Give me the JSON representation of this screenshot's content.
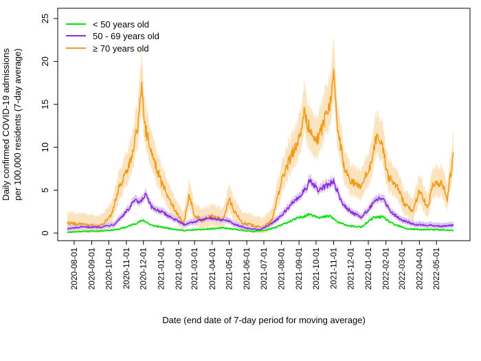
{
  "chart_data": {
    "type": "line",
    "title": "",
    "xlabel": "Date (end date of 7-day period for moving average)",
    "ylabel": [
      "Daily confirmed COVID-19 admissions",
      "per 100,000 residents (7-day average)"
    ],
    "ylim": [
      0,
      25
    ],
    "yticks": [
      0,
      5,
      10,
      15,
      20,
      25
    ],
    "x_start": "2020-07-20",
    "x_end": "2022-05-31",
    "xticks": [
      "2020-08-01",
      "2020-09-01",
      "2020-10-01",
      "2020-11-01",
      "2020-12-01",
      "2021-01-01",
      "2021-02-01",
      "2021-03-01",
      "2021-04-01",
      "2021-05-01",
      "2021-06-01",
      "2021-07-01",
      "2021-08-01",
      "2021-09-01",
      "2021-10-01",
      "2021-11-01",
      "2021-12-01",
      "2022-01-01",
      "2022-02-01",
      "2022-03-01",
      "2022-04-01",
      "2022-05-01"
    ],
    "legend": {
      "position": "top-left"
    },
    "series": [
      {
        "name": "< 50 years old",
        "color": "#00e000",
        "band_color": "#b8f0b8",
        "band_width": 0.25,
        "points": [
          [
            "2020-07-20",
            0.1
          ],
          [
            "2020-08-15",
            0.2
          ],
          [
            "2020-09-15",
            0.25
          ],
          [
            "2020-10-15",
            0.4
          ],
          [
            "2020-11-01",
            0.7
          ],
          [
            "2020-11-20",
            1.2
          ],
          [
            "2020-12-01",
            1.5
          ],
          [
            "2020-12-15",
            0.9
          ],
          [
            "2021-01-01",
            0.7
          ],
          [
            "2021-01-20",
            0.5
          ],
          [
            "2021-02-10",
            0.3
          ],
          [
            "2021-03-10",
            0.4
          ],
          [
            "2021-04-01",
            0.5
          ],
          [
            "2021-04-20",
            0.6
          ],
          [
            "2021-05-15",
            0.4
          ],
          [
            "2021-06-10",
            0.2
          ],
          [
            "2021-07-01",
            0.3
          ],
          [
            "2021-07-20",
            0.6
          ],
          [
            "2021-08-10",
            1.2
          ],
          [
            "2021-09-01",
            1.8
          ],
          [
            "2021-09-20",
            2.2
          ],
          [
            "2021-10-10",
            1.8
          ],
          [
            "2021-10-25",
            2.0
          ],
          [
            "2021-11-10",
            1.2
          ],
          [
            "2021-12-01",
            0.8
          ],
          [
            "2021-12-20",
            0.7
          ],
          [
            "2022-01-10",
            1.8
          ],
          [
            "2022-01-25",
            1.9
          ],
          [
            "2022-02-15",
            1.0
          ],
          [
            "2022-03-10",
            0.5
          ],
          [
            "2022-04-05",
            0.4
          ],
          [
            "2022-05-01",
            0.4
          ],
          [
            "2022-05-31",
            0.3
          ]
        ]
      },
      {
        "name": "50 - 69 years old",
        "color": "#8a2be2",
        "band_color": "#dcc6ec",
        "band_width": 0.7,
        "points": [
          [
            "2020-07-20",
            0.5
          ],
          [
            "2020-08-15",
            0.7
          ],
          [
            "2020-09-15",
            0.7
          ],
          [
            "2020-10-10",
            1.0
          ],
          [
            "2020-10-25",
            2.0
          ],
          [
            "2020-11-05",
            2.8
          ],
          [
            "2020-11-15",
            3.8
          ],
          [
            "2020-11-25",
            3.5
          ],
          [
            "2020-12-05",
            4.5
          ],
          [
            "2020-12-15",
            3.0
          ],
          [
            "2021-01-01",
            2.5
          ],
          [
            "2021-01-20",
            1.8
          ],
          [
            "2021-02-10",
            1.0
          ],
          [
            "2021-03-10",
            1.5
          ],
          [
            "2021-03-25",
            1.8
          ],
          [
            "2021-04-10",
            1.6
          ],
          [
            "2021-04-25",
            1.5
          ],
          [
            "2021-05-15",
            0.9
          ],
          [
            "2021-06-05",
            0.5
          ],
          [
            "2021-06-25",
            0.4
          ],
          [
            "2021-07-10",
            0.9
          ],
          [
            "2021-08-01",
            2.0
          ],
          [
            "2021-08-20",
            3.5
          ],
          [
            "2021-09-05",
            4.5
          ],
          [
            "2021-09-20",
            6.0
          ],
          [
            "2021-10-05",
            5.0
          ],
          [
            "2021-10-20",
            5.5
          ],
          [
            "2021-11-01",
            6.0
          ],
          [
            "2021-11-15",
            3.5
          ],
          [
            "2021-12-01",
            2.5
          ],
          [
            "2021-12-20",
            1.8
          ],
          [
            "2022-01-10",
            3.5
          ],
          [
            "2022-01-25",
            4.2
          ],
          [
            "2022-02-10",
            2.5
          ],
          [
            "2022-03-01",
            1.5
          ],
          [
            "2022-03-25",
            1.0
          ],
          [
            "2022-04-20",
            0.9
          ],
          [
            "2022-05-10",
            0.8
          ],
          [
            "2022-05-31",
            0.9
          ]
        ]
      },
      {
        "name": "≥ 70 years old",
        "color": "#f09a1a",
        "band_color": "#fbe3be",
        "band_width": 2.2,
        "points": [
          [
            "2020-07-20",
            1.2
          ],
          [
            "2020-08-15",
            1.0
          ],
          [
            "2020-09-15",
            0.8
          ],
          [
            "2020-10-05",
            2.0
          ],
          [
            "2020-10-20",
            5.5
          ],
          [
            "2020-11-01",
            7.0
          ],
          [
            "2020-11-10",
            9.0
          ],
          [
            "2020-11-20",
            12.0
          ],
          [
            "2020-11-28",
            17.0
          ],
          [
            "2020-12-05",
            12.0
          ],
          [
            "2020-12-15",
            9.5
          ],
          [
            "2021-01-01",
            6.0
          ],
          [
            "2021-01-15",
            4.0
          ],
          [
            "2021-02-01",
            2.0
          ],
          [
            "2021-02-10",
            1.2
          ],
          [
            "2021-02-20",
            4.5
          ],
          [
            "2021-03-01",
            2.0
          ],
          [
            "2021-03-15",
            1.5
          ],
          [
            "2021-04-01",
            2.0
          ],
          [
            "2021-04-20",
            1.5
          ],
          [
            "2021-05-01",
            4.0
          ],
          [
            "2021-05-10",
            2.5
          ],
          [
            "2021-05-25",
            1.2
          ],
          [
            "2021-06-15",
            0.8
          ],
          [
            "2021-07-01",
            0.7
          ],
          [
            "2021-07-15",
            1.5
          ],
          [
            "2021-08-01",
            6.0
          ],
          [
            "2021-08-15",
            8.5
          ],
          [
            "2021-09-01",
            11.0
          ],
          [
            "2021-09-10",
            14.0
          ],
          [
            "2021-09-20",
            12.0
          ],
          [
            "2021-10-05",
            11.0
          ],
          [
            "2021-10-15",
            13.0
          ],
          [
            "2021-10-25",
            15.0
          ],
          [
            "2021-11-01",
            18.0
          ],
          [
            "2021-11-08",
            12.0
          ],
          [
            "2021-11-20",
            7.5
          ],
          [
            "2021-12-01",
            6.0
          ],
          [
            "2021-12-20",
            5.5
          ],
          [
            "2022-01-05",
            8.0
          ],
          [
            "2022-01-15",
            11.0
          ],
          [
            "2022-01-25",
            10.5
          ],
          [
            "2022-02-05",
            6.5
          ],
          [
            "2022-02-20",
            5.5
          ],
          [
            "2022-03-05",
            3.5
          ],
          [
            "2022-03-20",
            2.5
          ],
          [
            "2022-04-01",
            5.0
          ],
          [
            "2022-04-15",
            3.0
          ],
          [
            "2022-04-25",
            5.5
          ],
          [
            "2022-05-10",
            6.0
          ],
          [
            "2022-05-20",
            4.0
          ],
          [
            "2022-05-31",
            9.5
          ]
        ]
      }
    ]
  }
}
